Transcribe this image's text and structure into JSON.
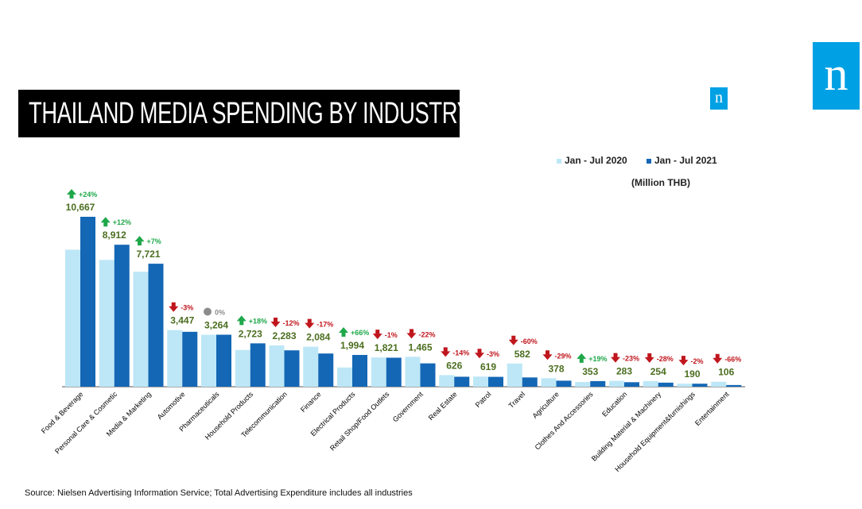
{
  "title": "THAILAND  MEDIA SPENDING BY INDUSTRY",
  "logo_letter": "n",
  "unit": "(Million  THB)",
  "source": "Source: Nielsen Advertising Information Service; Total Advertising Expenditure includes all industries",
  "colors": {
    "series_2020": "#BDE7F7",
    "series_2021": "#1467B5",
    "value_label": "#4B6E1F",
    "up": "#1FA84A",
    "down": "#C0161D",
    "flat": "#8C8C8C",
    "logo": "#00A1E4"
  },
  "chart_data": {
    "type": "bar",
    "categories": [
      "Food & Beverage",
      "Personal Care & Cosmetic",
      "Media & Marketing",
      "Automotive",
      "Pharmaceuticals",
      "Household Products",
      "Telecommunication",
      "Finance",
      "Electrical Products",
      "Retail Shop/Food Outlets",
      "Government",
      "Real Estate",
      "Patrol",
      "Travel",
      "Agriculture",
      "Clothes And Accessories",
      "Education",
      "Building Material & Machinery",
      "Household Equipment&furnishings",
      "Entertainment"
    ],
    "series": [
      {
        "name": "Jan - Jul 2020",
        "values": [
          8600,
          7960,
          7216,
          3554,
          3264,
          2307,
          2594,
          2511,
          1206,
          1839,
          1878,
          728,
          638,
          1455,
          533,
          297,
          368,
          353,
          194,
          312
        ]
      },
      {
        "name": "Jan - Jul 2021",
        "values": [
          10667,
          8912,
          7721,
          3447,
          3264,
          2723,
          2283,
          2084,
          1994,
          1821,
          1465,
          626,
          619,
          582,
          378,
          353,
          283,
          254,
          190,
          106
        ]
      }
    ],
    "value_labels": [
      "10,667",
      "8,912",
      "7,721",
      "3,447",
      "3,264",
      "2,723",
      "2,283",
      "2,084",
      "1,994",
      "1,821",
      "1,465",
      "626",
      "619",
      "582",
      "378",
      "353",
      "283",
      "254",
      "190",
      "106"
    ],
    "changes": [
      "+24%",
      "+12%",
      "+7%",
      "-3%",
      "0%",
      "+18%",
      "-12%",
      "-17%",
      "+66%",
      "-1%",
      "-22%",
      "-14%",
      "-3%",
      "-60%",
      "-29%",
      "+19%",
      "-23%",
      "-28%",
      "-2%",
      "-66%"
    ],
    "change_direction": [
      "up",
      "up",
      "up",
      "down",
      "flat",
      "up",
      "down",
      "down",
      "up",
      "down",
      "down",
      "down",
      "down",
      "down",
      "down",
      "up",
      "down",
      "down",
      "down",
      "down"
    ],
    "ylim": [
      0,
      11500
    ],
    "grid": false,
    "legend_position": "top-right"
  }
}
